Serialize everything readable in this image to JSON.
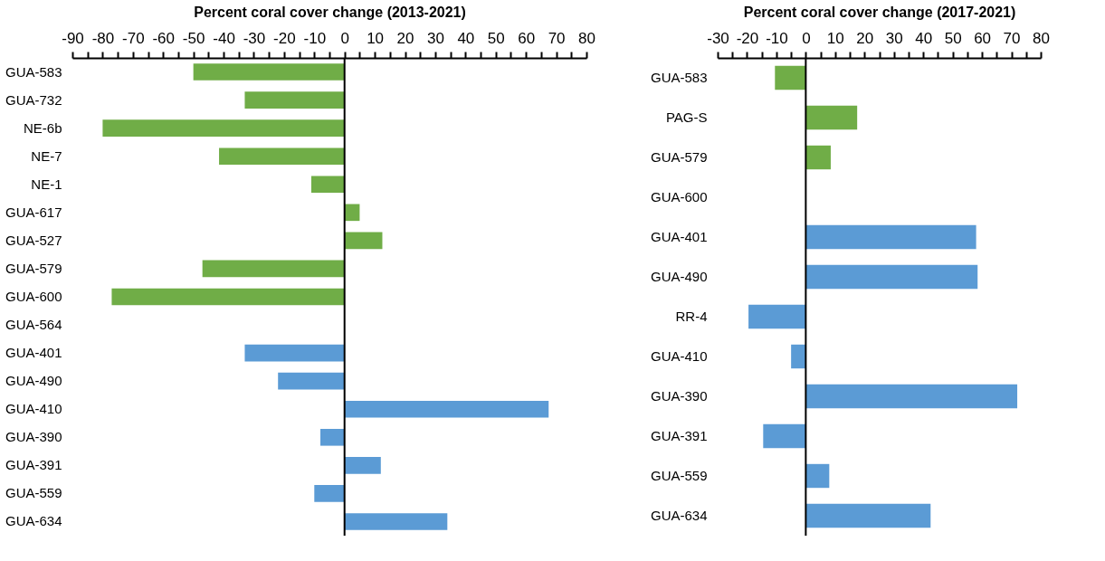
{
  "chart_data": [
    {
      "type": "bar",
      "orientation": "horizontal",
      "xlabel": "Percent coral cover change (2013-2021)",
      "categories": [
        "GUA-583",
        "GUA-732",
        "NE-6b",
        "NE-7",
        "NE-1",
        "GUA-617",
        "GUA-527",
        "GUA-579",
        "GUA-600",
        "GUA-564",
        "GUA-401",
        "GUA-490",
        "GUA-410",
        "GUA-390",
        "GUA-391",
        "GUA-559",
        "GUA-634"
      ],
      "values": [
        -50,
        -33,
        -80,
        -41.5,
        -11,
        5,
        12.5,
        -47,
        -77,
        0,
        -33,
        -22,
        67.5,
        -8,
        12,
        -10,
        34
      ],
      "colors": [
        "#70ad47",
        "#70ad47",
        "#70ad47",
        "#70ad47",
        "#70ad47",
        "#70ad47",
        "#70ad47",
        "#70ad47",
        "#70ad47",
        "#70ad47",
        "#5b9bd5",
        "#5b9bd5",
        "#5b9bd5",
        "#5b9bd5",
        "#5b9bd5",
        "#5b9bd5",
        "#5b9bd5"
      ],
      "xlim": [
        -90,
        80
      ],
      "ref_lines": [
        {
          "axis": "x",
          "value": 0,
          "color": "#000000"
        }
      ],
      "xticks": [
        -90,
        {
          "value": -85,
          "label": null
        },
        -80,
        {
          "value": -75,
          "label": null
        },
        -70,
        {
          "value": -65,
          "label": null
        },
        -60,
        {
          "value": -55,
          "label": null
        },
        -50,
        {
          "value": -45,
          "label": null
        },
        -40,
        {
          "value": -35,
          "label": null
        },
        -30,
        {
          "value": -25,
          "label": null
        },
        -20,
        {
          "value": -15,
          "label": null
        },
        -10,
        {
          "value": -5,
          "label": null
        },
        0,
        {
          "value": 5,
          "label": null
        },
        10,
        {
          "value": 15,
          "label": null
        },
        20,
        {
          "value": 25,
          "label": null
        },
        30,
        {
          "value": 35,
          "label": null
        },
        40,
        {
          "value": 45,
          "label": null
        },
        50,
        {
          "value": 55,
          "label": null
        },
        60,
        {
          "value": 65,
          "label": null
        },
        70,
        {
          "value": 75,
          "label": null
        },
        80
      ],
      "grid": false,
      "legend": false
    },
    {
      "type": "bar",
      "orientation": "horizontal",
      "xlabel": "Percent coral cover change (2017-2021)",
      "categories": [
        "GUA-583",
        "PAG-S",
        "GUA-579",
        "GUA-600",
        "GUA-401",
        "GUA-490",
        "RR-4",
        "GUA-410",
        "GUA-390",
        "GUA-391",
        "GUA-559",
        "GUA-634"
      ],
      "values": [
        -10.5,
        17.5,
        8.5,
        0,
        58,
        58.5,
        -19.5,
        -5,
        72,
        -14.5,
        8,
        42.5
      ],
      "colors": [
        "#70ad47",
        "#70ad47",
        "#70ad47",
        "#70ad47",
        "#5b9bd5",
        "#5b9bd5",
        "#5b9bd5",
        "#5b9bd5",
        "#5b9bd5",
        "#5b9bd5",
        "#5b9bd5",
        "#5b9bd5"
      ],
      "xlim": [
        -30,
        80
      ],
      "ref_lines": [
        {
          "axis": "x",
          "value": 0,
          "color": "#000000"
        }
      ],
      "xticks": [
        -30,
        {
          "value": -25,
          "label": null
        },
        -20,
        {
          "value": -15,
          "label": null
        },
        -10,
        {
          "value": -5,
          "label": null
        },
        0,
        {
          "value": 5,
          "label": null
        },
        10,
        {
          "value": 15,
          "label": null
        },
        20,
        {
          "value": 25,
          "label": null
        },
        30,
        {
          "value": 35,
          "label": null
        },
        40,
        {
          "value": 45,
          "label": null
        },
        50,
        {
          "value": 55,
          "label": null
        },
        60,
        {
          "value": 65,
          "label": null
        },
        70,
        {
          "value": 75,
          "label": null
        },
        80
      ],
      "grid": false,
      "legend": false
    }
  ]
}
